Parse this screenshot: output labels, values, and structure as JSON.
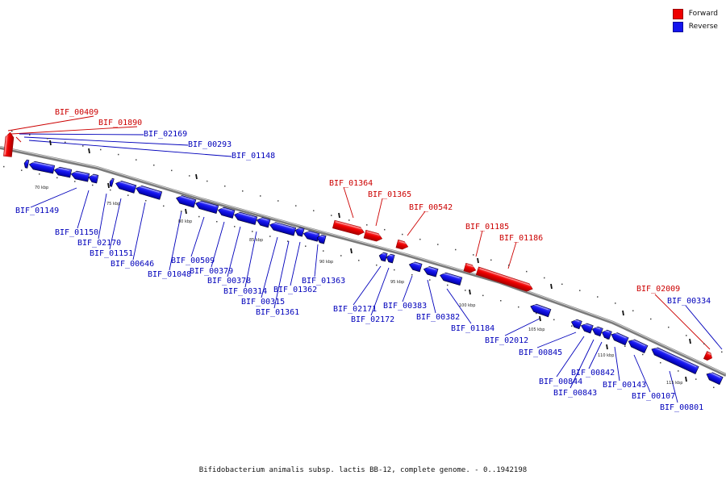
{
  "legend": {
    "forward": {
      "label": "Forward",
      "color": "#ee0000"
    },
    "reverse": {
      "label": "Reverse",
      "color": "#1414ee"
    }
  },
  "caption": "Bifidobacterium animalis subsp. lactis BB-12, complete genome. - 0..1942198",
  "scale_labels": [
    "70 kbp",
    "75 kbp",
    "80 kbp",
    "85 kbp",
    "90 kbp",
    "95 kbp",
    "100 kbp",
    "105 kbp",
    "110 kbp",
    "115 kbp"
  ],
  "forward_genes": [
    "BIF_00409",
    "BIF_01890",
    "BIF_01364",
    "BIF_01365",
    "BIF_00542",
    "BIF_01185",
    "BIF_01186",
    "BIF_02009"
  ],
  "reverse_genes": [
    "BIF_02169",
    "BIF_00293",
    "BIF_01148",
    "BIF_01149",
    "BIF_01150",
    "BIF_02170",
    "BIF_01151",
    "BIF_00646",
    "BIF_01048",
    "BIF_00509",
    "BIF_00379",
    "BIF_00378",
    "BIF_00314",
    "BIF_00315",
    "BIF_01361",
    "BIF_01362",
    "BIF_01363",
    "BIF_02171",
    "BIF_02172",
    "BIF_00383",
    "BIF_00382",
    "BIF_01184",
    "BIF_02012",
    "BIF_00845",
    "BIF_00844",
    "BIF_00843",
    "BIF_00842",
    "BIF_00143",
    "BIF_00107",
    "BIF_00801",
    "BIF_00334"
  ]
}
